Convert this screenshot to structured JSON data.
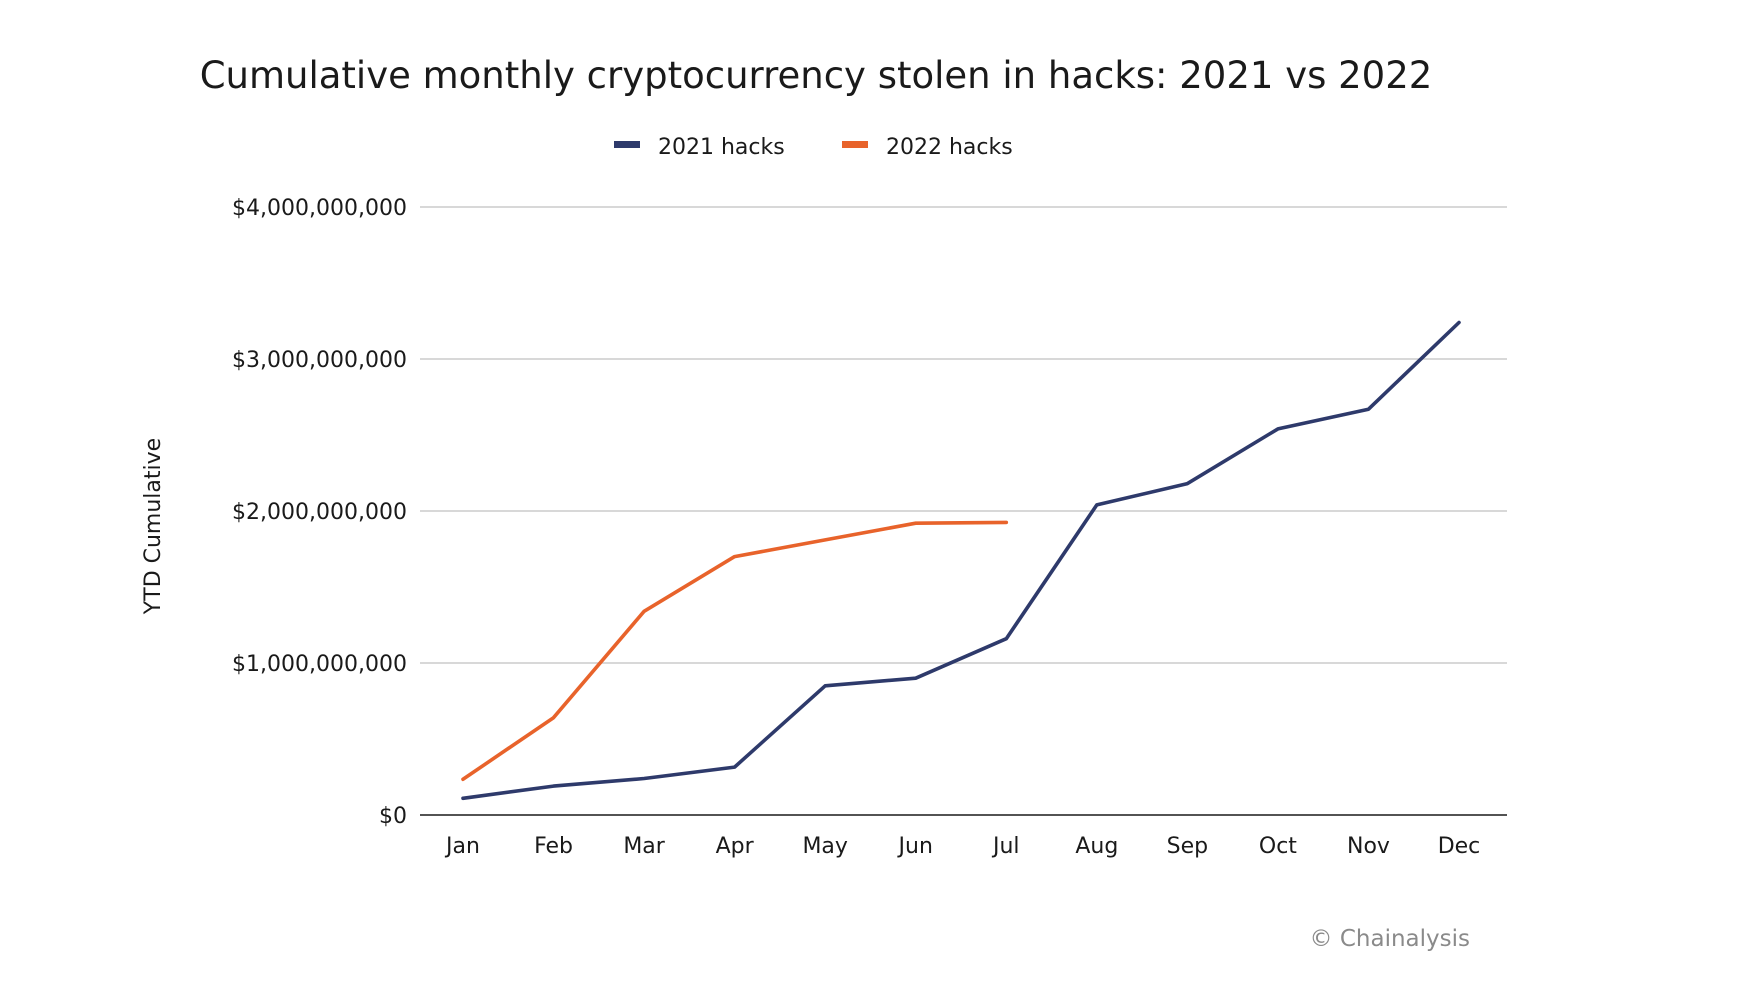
{
  "chart_data": {
    "type": "line",
    "title": "Cumulative monthly cryptocurrency stolen in hacks: 2021 vs 2022",
    "ylabel": "YTD Cumulative",
    "xlabel": "",
    "categories": [
      "Jan",
      "Feb",
      "Mar",
      "Apr",
      "May",
      "Jun",
      "Jul",
      "Aug",
      "Sep",
      "Oct",
      "Nov",
      "Dec"
    ],
    "ylim": [
      0,
      4000000000
    ],
    "yticks": [
      0,
      1000000000,
      2000000000,
      3000000000,
      4000000000
    ],
    "ytick_labels": [
      "$0",
      "$1,000,000,000",
      "$2,000,000,000",
      "$3,000,000,000",
      "$4,000,000,000"
    ],
    "grid": true,
    "legend_position": "top-center",
    "series": [
      {
        "name": "2021 hacks",
        "color": "#2e3a6b",
        "values": [
          110000000,
          190000000,
          240000000,
          315000000,
          850000000,
          900000000,
          1160000000,
          2040000000,
          2180000000,
          2540000000,
          2670000000,
          3240000000
        ]
      },
      {
        "name": "2022 hacks",
        "color": "#e8632b",
        "values": [
          235000000,
          640000000,
          1340000000,
          1700000000,
          1810000000,
          1920000000,
          1925000000,
          null,
          null,
          null,
          null,
          null
        ]
      }
    ],
    "credit": "© Chainalysis"
  }
}
